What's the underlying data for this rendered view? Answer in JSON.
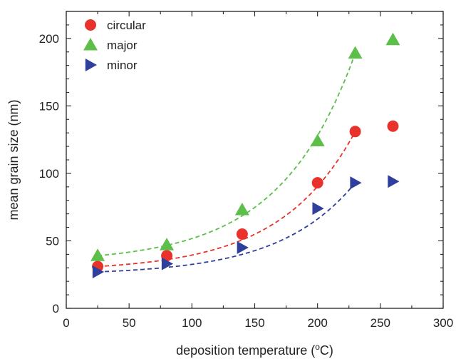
{
  "chart_data": {
    "type": "scatter",
    "title": "",
    "xlabel": "deposition temperature (",
    "xlabel_sup": "o",
    "xlabel_unit": "C)",
    "ylabel": "mean grain size (nm)",
    "xlim": [
      0,
      300
    ],
    "ylim": [
      0,
      220
    ],
    "x_ticks": [
      0,
      50,
      100,
      150,
      200,
      250,
      300
    ],
    "y_ticks": [
      0,
      50,
      100,
      150,
      200
    ],
    "grid": false,
    "legend_position": "top-left",
    "series": [
      {
        "name": "circular",
        "marker": "circle",
        "color": "#e8322b",
        "x": [
          25,
          80,
          140,
          200,
          230,
          260
        ],
        "y": [
          31,
          39,
          55,
          93,
          131,
          135
        ],
        "fit_x": [
          25,
          230
        ],
        "fit": [
          31,
          131
        ]
      },
      {
        "name": "major",
        "marker": "triangle-up",
        "color": "#5cbf4a",
        "x": [
          25,
          80,
          140,
          200,
          230,
          260
        ],
        "y": [
          39,
          47,
          73,
          124,
          189,
          199
        ],
        "fit_x": [
          25,
          230
        ],
        "fit": [
          39,
          189
        ]
      },
      {
        "name": "minor",
        "marker": "triangle-right",
        "color": "#2e3f9c",
        "x": [
          25,
          80,
          140,
          200,
          230,
          260
        ],
        "y": [
          27,
          33,
          45,
          74,
          93,
          94
        ],
        "fit_x": [
          25,
          230
        ],
        "fit": [
          27,
          93
        ]
      }
    ]
  }
}
